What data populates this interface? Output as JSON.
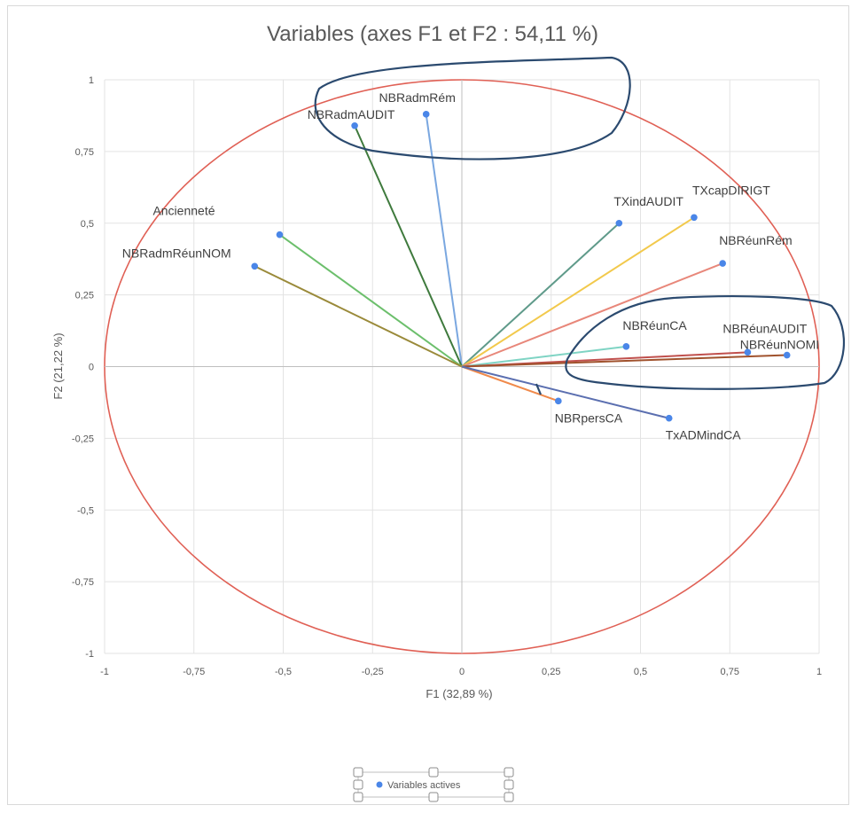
{
  "chart_data": {
    "type": "scatter",
    "title": "Variables (axes F1 et F2 : 54,11 %)",
    "xlabel": "F1 (32,89 %)",
    "ylabel": "F2 (21,22 %)",
    "xlim": [
      -1,
      1
    ],
    "ylim": [
      -1,
      1
    ],
    "x_ticks": [
      -1,
      -0.75,
      -0.5,
      -0.25,
      0,
      0.25,
      0.5,
      0.75,
      1
    ],
    "y_ticks": [
      -1,
      -0.75,
      -0.5,
      -0.25,
      0,
      0.25,
      0.5,
      0.75,
      1
    ],
    "x_tick_labels": [
      "-1",
      "-0,75",
      "-0,5",
      "-0,25",
      "0",
      "0,25",
      "0,5",
      "0,75",
      "1"
    ],
    "y_tick_labels": [
      "-1",
      "-0,75",
      "-0,5",
      "-0,25",
      "0",
      "0,25",
      "0,5",
      "0,75",
      "1"
    ],
    "grid": true,
    "correlation_circle": true,
    "legend": {
      "position": "bottom",
      "label": "Variables actives"
    },
    "point_color": "#4a86e8",
    "circle_color": "#e06055",
    "annotation_color": "#2b4a6f",
    "points": [
      {
        "name": "NBRadmRém",
        "x": -0.1,
        "y": 0.88,
        "color": "#7aa7e0"
      },
      {
        "name": "NBRadmAUDIT",
        "x": -0.3,
        "y": 0.84,
        "color": "#3f7a3d"
      },
      {
        "name": "Ancienneté",
        "x": -0.51,
        "y": 0.46,
        "color": "#6cbf6c"
      },
      {
        "name": "NBRadmRéunNOM",
        "x": -0.58,
        "y": 0.35,
        "color": "#9a8a3a"
      },
      {
        "name": "TXindAUDIT",
        "x": 0.44,
        "y": 0.5,
        "color": "#5f9a8a"
      },
      {
        "name": "TXcapDIRIGT",
        "x": 0.65,
        "y": 0.52,
        "color": "#f2c94c"
      },
      {
        "name": "NBRéunRém",
        "x": 0.73,
        "y": 0.36,
        "color": "#e8877a"
      },
      {
        "name": "NBRéunCA",
        "x": 0.46,
        "y": 0.07,
        "color": "#7fd4c4"
      },
      {
        "name": "NBRéunAUDIT",
        "x": 0.8,
        "y": 0.05,
        "color": "#c0504d"
      },
      {
        "name": "NBRéunNOMI",
        "x": 0.91,
        "y": 0.04,
        "color": "#a0522d"
      },
      {
        "name": "NBRpersCA",
        "x": 0.27,
        "y": -0.12,
        "color": "#f08a4b"
      },
      {
        "name": "TxADMindCA",
        "x": 0.58,
        "y": -0.18,
        "color": "#5b6fb0"
      }
    ]
  }
}
